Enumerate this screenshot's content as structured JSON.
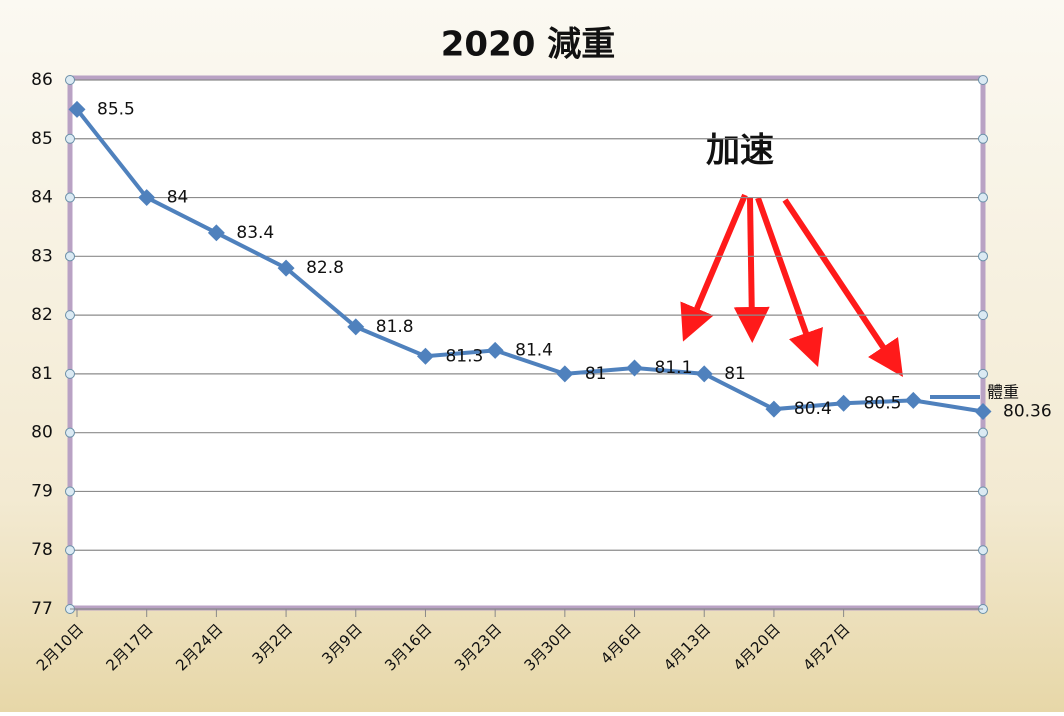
{
  "chart_data": {
    "type": "line",
    "title": "2020 減重",
    "categories": [
      "2月10日",
      "2月17日",
      "2月24日",
      "3月2日",
      "3月9日",
      "3月16日",
      "3月23日",
      "3月30日",
      "4月6日",
      "4月13日",
      "4月20日",
      "4月27日",
      null,
      null
    ],
    "series": [
      {
        "name": "體重",
        "color": "#4f81bd",
        "values": [
          85.5,
          84,
          83.4,
          82.8,
          81.8,
          81.3,
          81.4,
          81,
          81.1,
          81,
          80.4,
          80.5,
          80.55,
          80.36
        ],
        "value_labels": [
          "85.5",
          "84",
          "83.4",
          "82.8",
          "81.8",
          "81.3",
          "81.4",
          "81",
          "81.1",
          "81",
          "80.4",
          "80.5",
          null,
          "80.36"
        ]
      }
    ],
    "ylim": [
      77,
      86
    ],
    "yticks": [
      77,
      78,
      79,
      80,
      81,
      82,
      83,
      84,
      85,
      86
    ],
    "grid": true,
    "annotation": "加速",
    "annotation_color": "#ff1a1a"
  }
}
